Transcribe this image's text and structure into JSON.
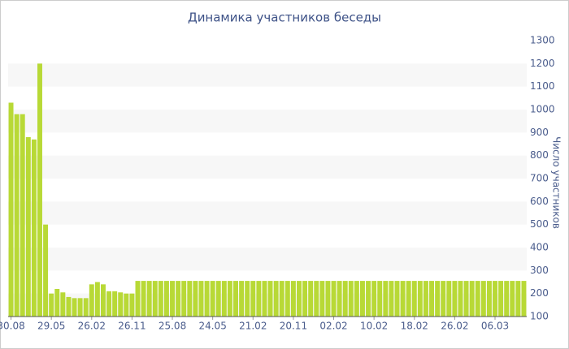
{
  "chart_data": {
    "type": "bar",
    "title": "Динамика участников беседы",
    "y_label": "Число участников",
    "categories": [
      "30.08",
      null,
      null,
      null,
      null,
      null,
      null,
      "29.05",
      null,
      null,
      null,
      null,
      null,
      null,
      "26.02",
      null,
      null,
      null,
      null,
      null,
      null,
      "26.11",
      null,
      null,
      null,
      null,
      null,
      null,
      "25.08",
      null,
      null,
      null,
      null,
      null,
      null,
      "24.05",
      null,
      null,
      null,
      null,
      null,
      null,
      "21.02",
      null,
      null,
      null,
      null,
      null,
      null,
      "20.11",
      null,
      null,
      null,
      null,
      null,
      null,
      "02.02",
      null,
      null,
      null,
      null,
      null,
      null,
      "10.02",
      null,
      null,
      null,
      null,
      null,
      null,
      "18.02",
      null,
      null,
      null,
      null,
      null,
      null,
      "26.02",
      null,
      null,
      null,
      null,
      null,
      null,
      "06.03",
      null,
      null,
      null,
      null,
      null
    ],
    "values": [
      1030,
      980,
      980,
      880,
      870,
      1200,
      500,
      200,
      220,
      205,
      185,
      180,
      180,
      180,
      240,
      250,
      240,
      210,
      210,
      205,
      200,
      200,
      255,
      255,
      255,
      255,
      255,
      255,
      255,
      255,
      255,
      255,
      255,
      255,
      255,
      255,
      255,
      255,
      255,
      255,
      255,
      255,
      255,
      255,
      255,
      255,
      255,
      255,
      255,
      255,
      255,
      255,
      255,
      255,
      255,
      255,
      255,
      255,
      255,
      255,
      255,
      255,
      255,
      255,
      255,
      255,
      255,
      255,
      255,
      255,
      255,
      255,
      255,
      255,
      255,
      255,
      255,
      255,
      255,
      255,
      255,
      255,
      255,
      255,
      255,
      255,
      255,
      255,
      255,
      255
    ],
    "color": "#b8d936",
    "ylim": [
      100,
      1300
    ],
    "yticks": [
      100,
      200,
      300,
      400,
      500,
      600,
      700,
      800,
      900,
      1000,
      1100,
      1200,
      1300
    ],
    "y_axis_side": "right",
    "grid": "bands",
    "band_color": "#f7f7f7"
  }
}
